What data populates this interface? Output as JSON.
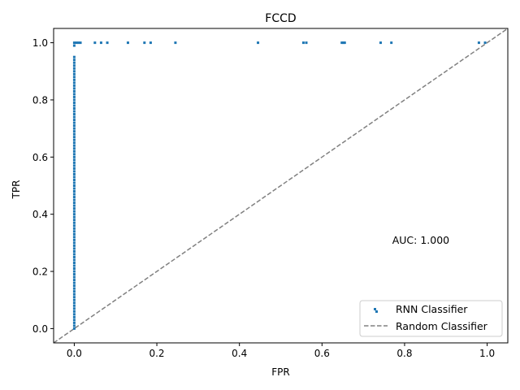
{
  "chart_data": {
    "type": "scatter",
    "title": "FCCD",
    "xlabel": "FPR",
    "ylabel": "TPR",
    "xlim": [
      -0.05,
      1.05
    ],
    "ylim": [
      -0.05,
      1.05
    ],
    "xticks": [
      0.0,
      0.2,
      0.4,
      0.6,
      0.8,
      1.0
    ],
    "yticks": [
      0.0,
      0.2,
      0.4,
      0.6,
      0.8,
      1.0
    ],
    "xtick_labels": [
      "0.0",
      "0.2",
      "0.4",
      "0.6",
      "0.8",
      "1.0"
    ],
    "ytick_labels": [
      "0.0",
      "0.2",
      "0.4",
      "0.6",
      "0.8",
      "1.0"
    ],
    "grid": false,
    "legend_position": "lower-right",
    "annotation": {
      "text": "AUC: 1.000",
      "x": 0.77,
      "y": 0.31
    },
    "series": [
      {
        "name": "RNN Classifier",
        "kind": "scatter",
        "color": "#1f77b4",
        "points": [
          [
            0.0,
            0.0
          ],
          [
            0.0,
            0.01
          ],
          [
            0.0,
            0.02
          ],
          [
            0.0,
            0.03
          ],
          [
            0.0,
            0.04
          ],
          [
            0.0,
            0.05
          ],
          [
            0.0,
            0.06
          ],
          [
            0.0,
            0.07
          ],
          [
            0.0,
            0.08
          ],
          [
            0.0,
            0.09
          ],
          [
            0.0,
            0.1
          ],
          [
            0.0,
            0.11
          ],
          [
            0.0,
            0.12
          ],
          [
            0.0,
            0.13
          ],
          [
            0.0,
            0.14
          ],
          [
            0.0,
            0.15
          ],
          [
            0.0,
            0.16
          ],
          [
            0.0,
            0.17
          ],
          [
            0.0,
            0.18
          ],
          [
            0.0,
            0.19
          ],
          [
            0.0,
            0.2
          ],
          [
            0.0,
            0.21
          ],
          [
            0.0,
            0.22
          ],
          [
            0.0,
            0.23
          ],
          [
            0.0,
            0.24
          ],
          [
            0.0,
            0.25
          ],
          [
            0.0,
            0.26
          ],
          [
            0.0,
            0.27
          ],
          [
            0.0,
            0.28
          ],
          [
            0.0,
            0.29
          ],
          [
            0.0,
            0.3
          ],
          [
            0.0,
            0.31
          ],
          [
            0.0,
            0.32
          ],
          [
            0.0,
            0.33
          ],
          [
            0.0,
            0.34
          ],
          [
            0.0,
            0.35
          ],
          [
            0.0,
            0.36
          ],
          [
            0.0,
            0.37
          ],
          [
            0.0,
            0.38
          ],
          [
            0.0,
            0.39
          ],
          [
            0.0,
            0.4
          ],
          [
            0.0,
            0.41
          ],
          [
            0.0,
            0.42
          ],
          [
            0.0,
            0.43
          ],
          [
            0.0,
            0.44
          ],
          [
            0.0,
            0.45
          ],
          [
            0.0,
            0.46
          ],
          [
            0.0,
            0.47
          ],
          [
            0.0,
            0.48
          ],
          [
            0.0,
            0.49
          ],
          [
            0.0,
            0.5
          ],
          [
            0.0,
            0.51
          ],
          [
            0.0,
            0.52
          ],
          [
            0.0,
            0.53
          ],
          [
            0.0,
            0.54
          ],
          [
            0.0,
            0.55
          ],
          [
            0.0,
            0.56
          ],
          [
            0.0,
            0.57
          ],
          [
            0.0,
            0.58
          ],
          [
            0.0,
            0.59
          ],
          [
            0.0,
            0.6
          ],
          [
            0.0,
            0.61
          ],
          [
            0.0,
            0.62
          ],
          [
            0.0,
            0.63
          ],
          [
            0.0,
            0.64
          ],
          [
            0.0,
            0.65
          ],
          [
            0.0,
            0.66
          ],
          [
            0.0,
            0.67
          ],
          [
            0.0,
            0.68
          ],
          [
            0.0,
            0.69
          ],
          [
            0.0,
            0.7
          ],
          [
            0.0,
            0.71
          ],
          [
            0.0,
            0.72
          ],
          [
            0.0,
            0.73
          ],
          [
            0.0,
            0.74
          ],
          [
            0.0,
            0.75
          ],
          [
            0.0,
            0.76
          ],
          [
            0.0,
            0.77
          ],
          [
            0.0,
            0.78
          ],
          [
            0.0,
            0.79
          ],
          [
            0.0,
            0.8
          ],
          [
            0.0,
            0.81
          ],
          [
            0.0,
            0.82
          ],
          [
            0.0,
            0.83
          ],
          [
            0.0,
            0.84
          ],
          [
            0.0,
            0.85
          ],
          [
            0.0,
            0.86
          ],
          [
            0.0,
            0.87
          ],
          [
            0.0,
            0.88
          ],
          [
            0.0,
            0.89
          ],
          [
            0.0,
            0.9
          ],
          [
            0.0,
            0.91
          ],
          [
            0.0,
            0.92
          ],
          [
            0.0,
            0.93
          ],
          [
            0.0,
            0.94
          ],
          [
            0.0,
            0.95
          ],
          [
            0.0,
            0.99
          ],
          [
            0.0,
            1.0
          ],
          [
            0.005,
            1.0
          ],
          [
            0.01,
            1.0
          ],
          [
            0.015,
            1.0
          ],
          [
            0.05,
            1.0
          ],
          [
            0.065,
            1.0
          ],
          [
            0.08,
            1.0
          ],
          [
            0.13,
            1.0
          ],
          [
            0.17,
            1.0
          ],
          [
            0.185,
            1.0
          ],
          [
            0.245,
            1.0
          ],
          [
            0.445,
            1.0
          ],
          [
            0.555,
            1.0
          ],
          [
            0.562,
            1.0
          ],
          [
            0.648,
            1.0
          ],
          [
            0.652,
            1.0
          ],
          [
            0.655,
            1.0
          ],
          [
            0.742,
            1.0
          ],
          [
            0.768,
            1.0
          ],
          [
            0.98,
            1.0
          ],
          [
            0.995,
            1.0
          ]
        ]
      },
      {
        "name": "Random Classifier",
        "kind": "line",
        "style": "dashed",
        "color": "#808080",
        "x": [
          -0.05,
          1.05
        ],
        "y": [
          -0.05,
          1.05
        ]
      }
    ]
  }
}
